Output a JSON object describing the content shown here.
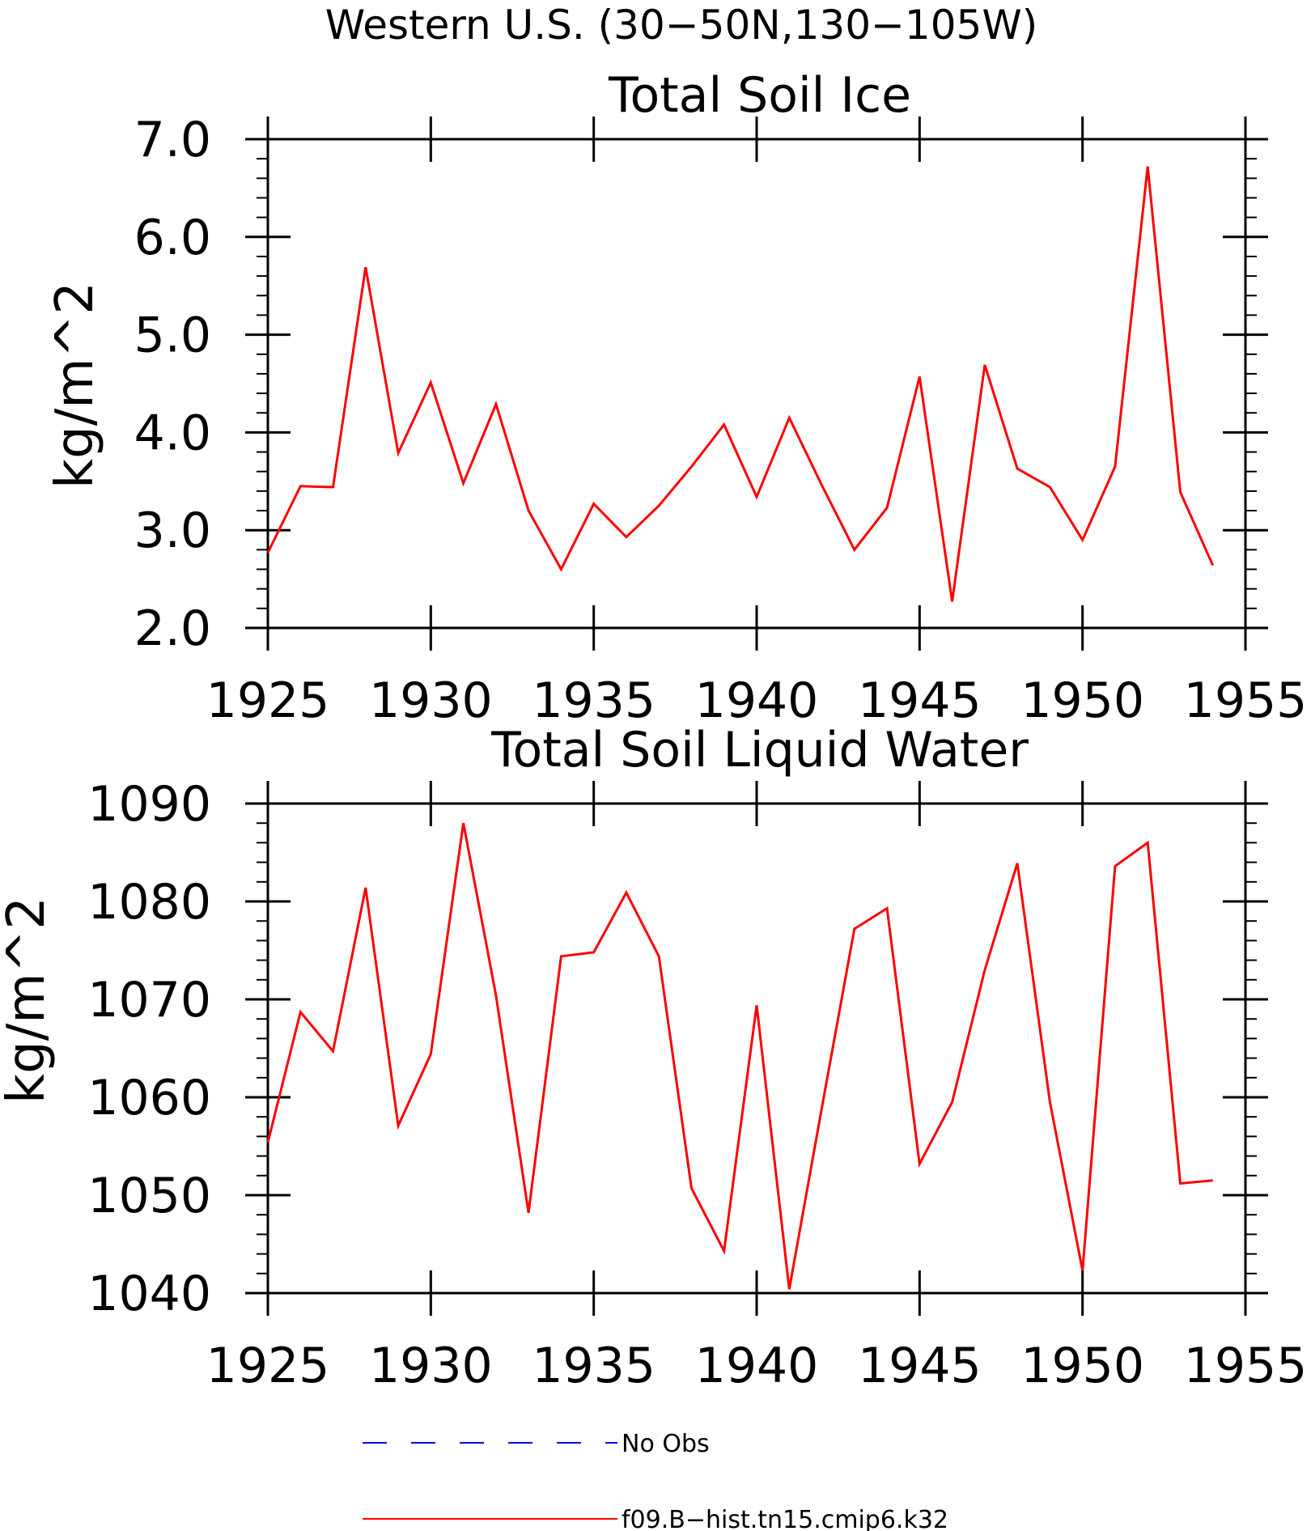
{
  "page_title": "Western U.S. (30−50N,130−105W)",
  "chart_data": [
    {
      "type": "line",
      "title": "Total Soil Ice",
      "ylabel": "kg/m^2",
      "xlabel": "",
      "xlim": [
        1925,
        1955
      ],
      "ylim": [
        2.0,
        7.0
      ],
      "xticks": [
        1925,
        1930,
        1935,
        1940,
        1945,
        1950,
        1955
      ],
      "xtick_labels": [
        "1925",
        "1930",
        "1935",
        "1940",
        "1945",
        "1950",
        "1955"
      ],
      "yticks": [
        2.0,
        3.0,
        4.0,
        5.0,
        6.0,
        7.0
      ],
      "ytick_labels": [
        "2.0",
        "3.0",
        "4.0",
        "5.0",
        "6.0",
        "7.0"
      ],
      "yminor_step": 0.2,
      "x": [
        1925,
        1926,
        1927,
        1928,
        1929,
        1930,
        1931,
        1932,
        1933,
        1934,
        1935,
        1936,
        1937,
        1938,
        1939,
        1940,
        1941,
        1942,
        1943,
        1944,
        1945,
        1946,
        1947,
        1948,
        1949,
        1950,
        1951,
        1952,
        1953,
        1954
      ],
      "series": [
        {
          "name": "f09.B−hist.tn15.cmip6.k32",
          "color": "#ff0000",
          "values": [
            2.77,
            3.45,
            3.44,
            5.69,
            3.79,
            4.51,
            3.48,
            4.29,
            3.2,
            2.6,
            3.27,
            2.93,
            3.25,
            3.65,
            4.08,
            3.34,
            4.15,
            3.46,
            2.8,
            3.23,
            4.57,
            2.27,
            4.69,
            3.63,
            3.44,
            2.9,
            3.65,
            6.72,
            3.39,
            2.64
          ]
        }
      ]
    },
    {
      "type": "line",
      "title": "Total Soil Liquid Water",
      "ylabel": "kg/m^2",
      "xlabel": "",
      "xlim": [
        1925,
        1955
      ],
      "ylim": [
        1040,
        1090
      ],
      "xticks": [
        1925,
        1930,
        1935,
        1940,
        1945,
        1950,
        1955
      ],
      "xtick_labels": [
        "1925",
        "1930",
        "1935",
        "1940",
        "1945",
        "1950",
        "1955"
      ],
      "yticks": [
        1040,
        1050,
        1060,
        1070,
        1080,
        1090
      ],
      "ytick_labels": [
        "1040",
        "1050",
        "1060",
        "1070",
        "1080",
        "1090"
      ],
      "yminor_step": 2,
      "x": [
        1925,
        1926,
        1927,
        1928,
        1929,
        1930,
        1931,
        1932,
        1933,
        1934,
        1935,
        1936,
        1937,
        1938,
        1939,
        1940,
        1941,
        1942,
        1943,
        1944,
        1945,
        1946,
        1947,
        1948,
        1949,
        1950,
        1951,
        1952,
        1953,
        1954
      ],
      "series": [
        {
          "name": "f09.B−hist.tn15.cmip6.k32",
          "color": "#ff0000",
          "values": [
            1055.4,
            1068.7,
            1064.7,
            1081.4,
            1057.1,
            1064.4,
            1088.0,
            1070.4,
            1048.2,
            1074.4,
            1074.8,
            1080.9,
            1074.4,
            1050.7,
            1044.3,
            1069.4,
            1040.4,
            1058.9,
            1077.2,
            1079.3,
            1053.2,
            1059.5,
            1073.0,
            1083.9,
            1059.5,
            1042.3,
            1083.6,
            1086.0,
            1051.2,
            1051.5
          ]
        }
      ]
    }
  ],
  "legend": [
    {
      "label": "No Obs",
      "color": "#0000ff",
      "style": "dashed"
    },
    {
      "label": "f09.B−hist.tn15.cmip6.k32",
      "color": "#ff0000",
      "style": "solid"
    }
  ]
}
